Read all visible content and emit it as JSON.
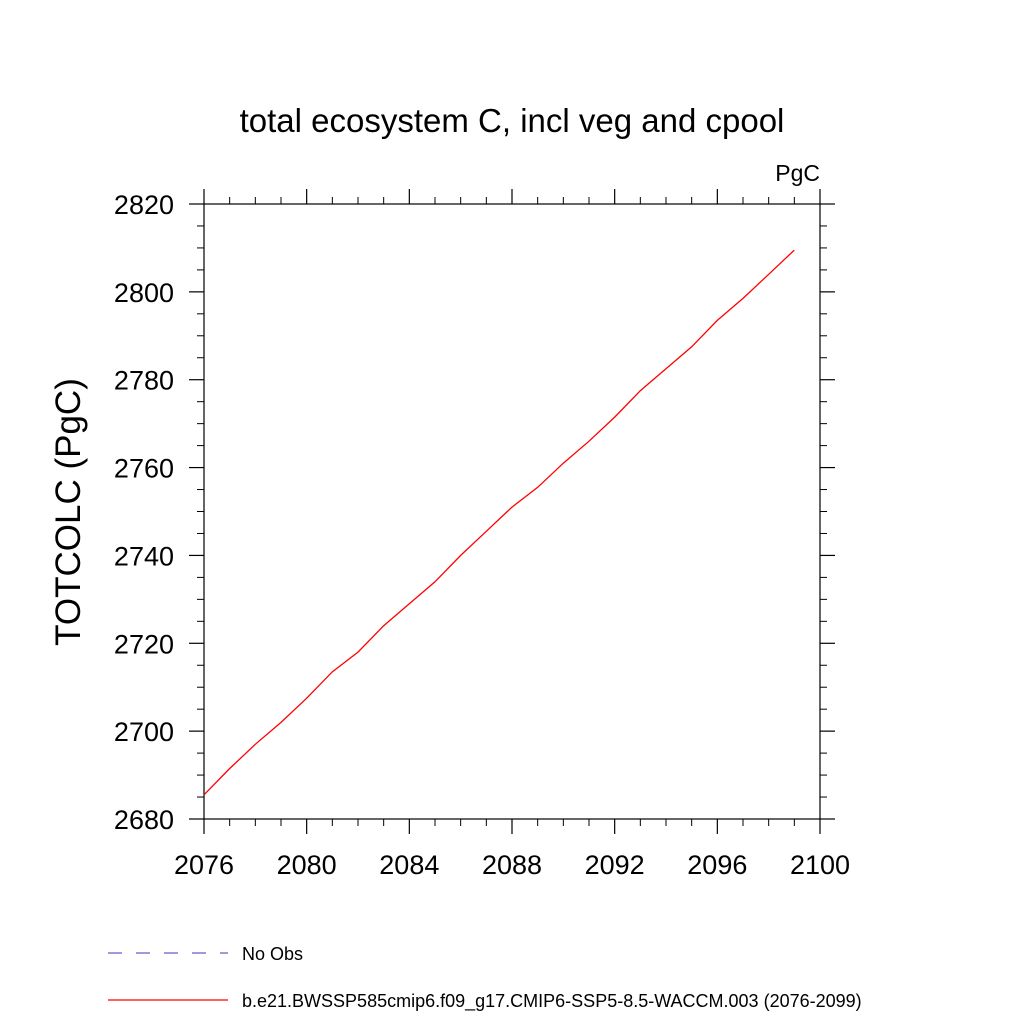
{
  "chart_data": {
    "type": "line",
    "title": "total ecosystem C, incl veg and cpool",
    "units_label": "PgC",
    "ylabel": "TOTCOLC  (PgC)",
    "xlabel": "",
    "xlim": [
      2076,
      2100
    ],
    "ylim": [
      2680,
      2820
    ],
    "x_ticks": [
      "2076",
      "2080",
      "2084",
      "2088",
      "2092",
      "2096",
      "2100"
    ],
    "y_ticks": [
      "2680",
      "2700",
      "2720",
      "2740",
      "2760",
      "2780",
      "2800",
      "2820"
    ],
    "grid": false,
    "legend_position": "bottom",
    "series": [
      {
        "name": "b.e21.BWSSP585cmip6.f09_g17.CMIP6-SSP5-8.5-WACCM.003 (2076-2099)",
        "color": "#ff0000",
        "style": "solid",
        "x": [
          2076,
          2077,
          2078,
          2079,
          2080,
          2081,
          2082,
          2083,
          2084,
          2085,
          2086,
          2087,
          2088,
          2089,
          2090,
          2091,
          2092,
          2093,
          2094,
          2095,
          2096,
          2097,
          2098,
          2099
        ],
        "y": [
          2685.5,
          2691.5,
          2697.0,
          2702.0,
          2707.5,
          2713.5,
          2718.0,
          2724.0,
          2729.0,
          2734.0,
          2740.0,
          2745.5,
          2751.0,
          2755.5,
          2761.0,
          2766.0,
          2771.5,
          2777.5,
          2782.5,
          2787.5,
          2793.5,
          2798.5,
          2804.0,
          2809.5
        ]
      }
    ],
    "legend": [
      {
        "label": "No Obs",
        "color": "#6a5acd",
        "style": "dashed"
      },
      {
        "label": "b.e21.BWSSP585cmip6.f09_g17.CMIP6-SSP5-8.5-WACCM.003 (2076-2099)",
        "color": "#ff0000",
        "style": "solid"
      }
    ]
  }
}
